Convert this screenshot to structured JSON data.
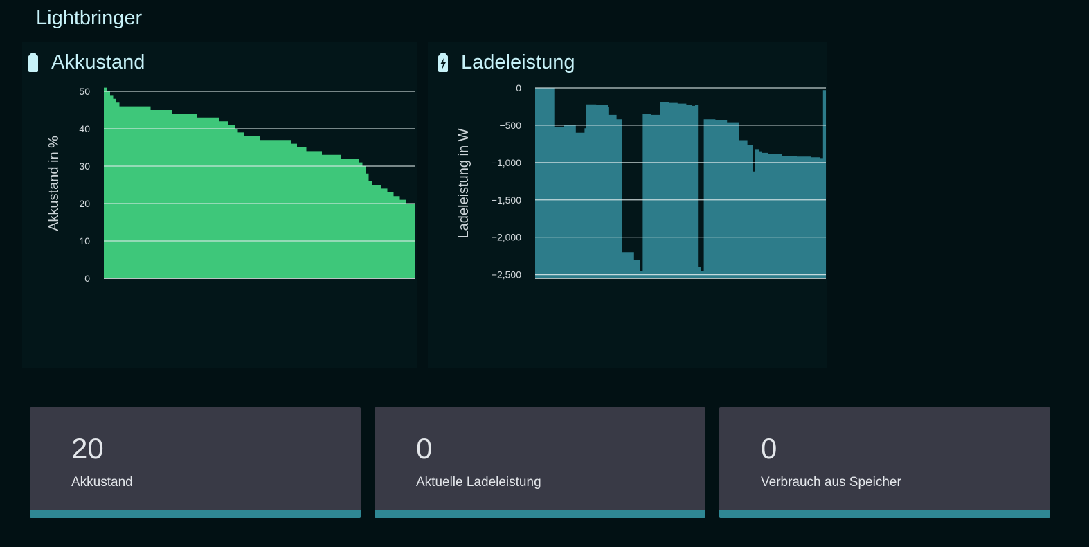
{
  "app": {
    "title": "Lightbringer"
  },
  "colors": {
    "background": "#021114",
    "green": "#3ec77a",
    "teal": "#2d7c8a",
    "card": "#393a46",
    "accent": "#2f8794"
  },
  "panels": [
    {
      "title": "Akkustand",
      "icon": "battery-icon"
    },
    {
      "title": "Ladeleistung",
      "icon": "battery-charging-icon"
    }
  ],
  "cards": [
    {
      "value": "20",
      "label": "Akkustand"
    },
    {
      "value": "0",
      "label": "Aktuelle Ladeleistung"
    },
    {
      "value": "0",
      "label": "Verbrauch aus Speicher"
    }
  ],
  "chart_data": [
    {
      "type": "area",
      "title": "Akkustand",
      "ylabel": "Akkustand in %",
      "xlabel": "",
      "ylim": [
        0,
        50
      ],
      "yticks": [
        "0",
        "10",
        "20",
        "30",
        "40",
        "50"
      ],
      "grid": true,
      "x": [
        0,
        1,
        2,
        3,
        4,
        5,
        15,
        22,
        30,
        37,
        40,
        42,
        43,
        45,
        47,
        50,
        60,
        62,
        65,
        70,
        76,
        82,
        83,
        84,
        85,
        86,
        87,
        89,
        91,
        93,
        95,
        97,
        100
      ],
      "y": [
        51,
        50,
        49,
        48,
        47,
        46,
        45,
        44,
        43,
        42,
        41,
        40,
        39,
        38,
        38,
        37,
        36,
        35,
        34,
        33,
        32,
        31,
        30,
        28,
        26,
        25,
        25,
        24,
        23,
        22,
        21,
        20,
        20
      ]
    },
    {
      "type": "area",
      "title": "Ladeleistung",
      "ylabel": "Ladeleistung in W",
      "xlabel": "",
      "ylim": [
        -2550,
        0
      ],
      "yticks": [
        "0",
        "−500",
        "−1,000",
        "−1,500",
        "−2,000",
        "−2,500"
      ],
      "grid": true,
      "x": [
        0,
        6.5,
        6.6,
        10,
        14,
        17,
        17.5,
        21,
        25,
        25.2,
        28,
        30,
        34,
        36,
        37,
        40,
        43,
        46,
        49,
        52,
        54,
        55,
        56,
        57,
        58,
        62,
        66,
        70,
        73,
        75,
        75.5,
        77,
        78,
        80,
        85,
        90,
        95,
        98,
        99,
        100
      ],
      "y": [
        0,
        0,
        -520,
        -500,
        -600,
        -540,
        -220,
        -230,
        -260,
        -360,
        -420,
        -2200,
        -2300,
        -2450,
        -350,
        -360,
        -190,
        -200,
        -210,
        -230,
        -240,
        -230,
        -2400,
        -2450,
        -420,
        -430,
        -460,
        -700,
        -760,
        -1120,
        -820,
        -850,
        -870,
        -890,
        -910,
        -920,
        -930,
        -940,
        -30,
        -30
      ]
    }
  ]
}
